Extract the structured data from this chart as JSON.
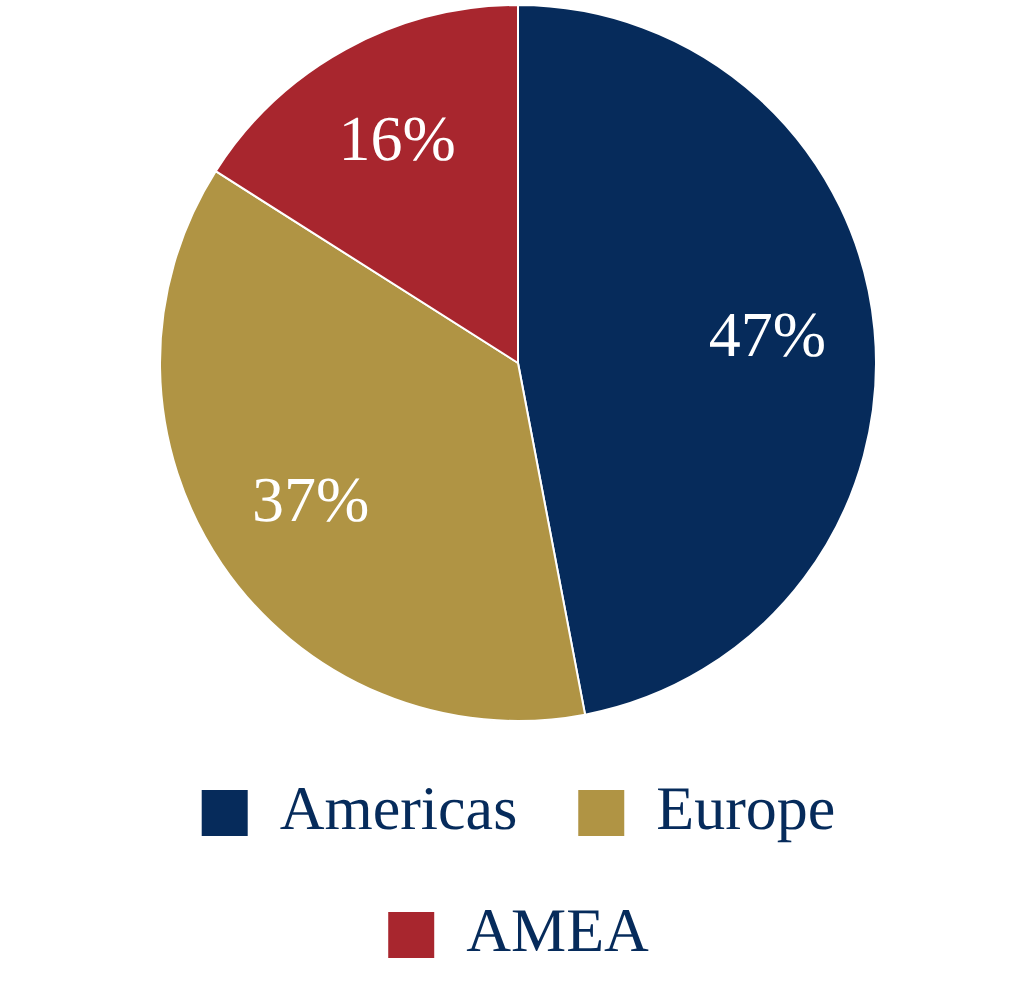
{
  "chart_data": {
    "type": "pie",
    "categories": [
      "Americas",
      "Europe",
      "AMEA"
    ],
    "values": [
      47,
      37,
      16
    ],
    "colors": [
      "#062b5b",
      "#b09444",
      "#a8262e"
    ],
    "value_labels": [
      "47%",
      "37%",
      "16%"
    ],
    "legend": "bottom"
  }
}
